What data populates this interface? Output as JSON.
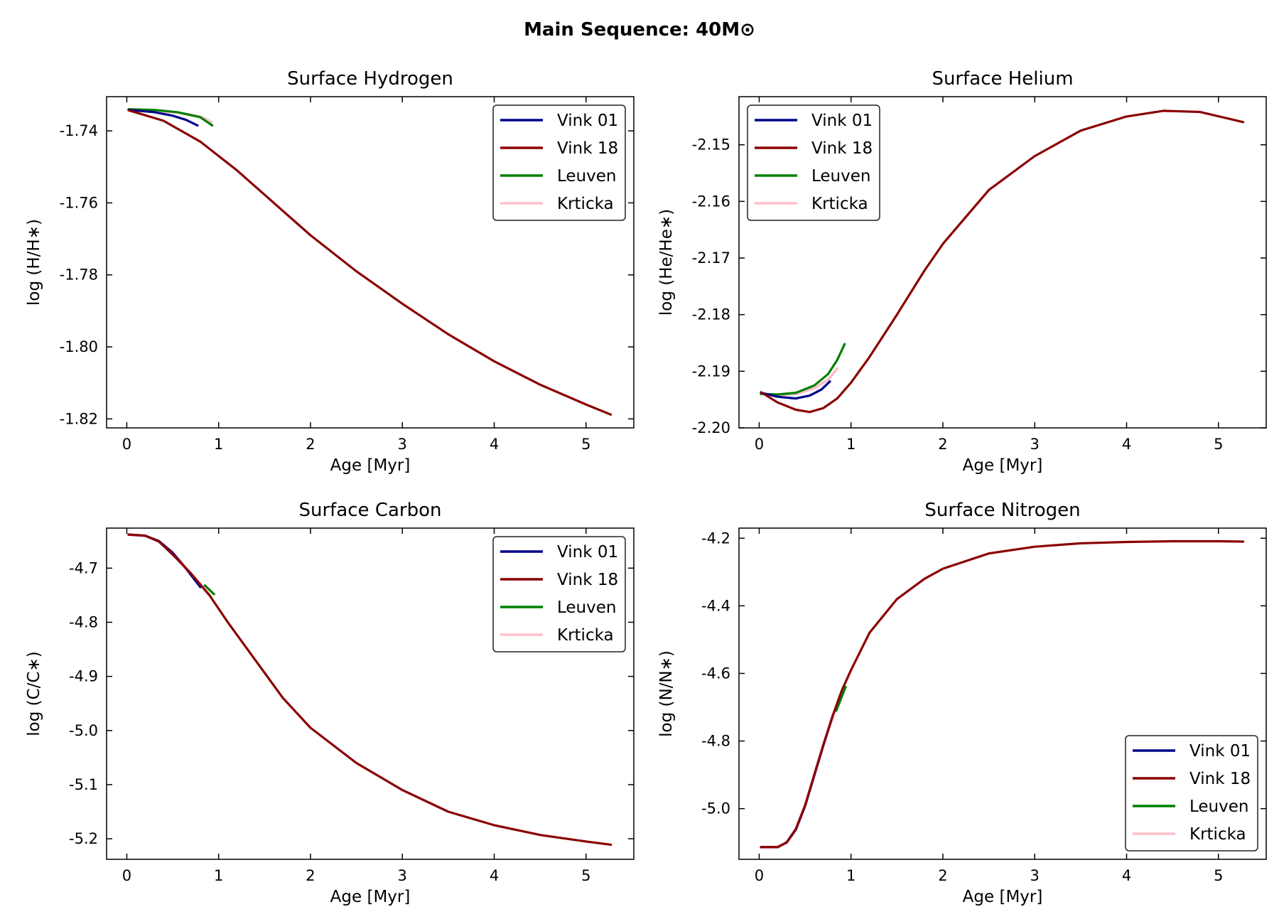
{
  "figure_title": "Main Sequence: 40M⊙",
  "colors": {
    "Vink 01": "#00008b",
    "Vink 18": "#8b0000",
    "Leuven": "#008000",
    "Krticka": "#ffc0cb"
  },
  "chart_data": [
    {
      "type": "line",
      "title": "Surface Hydrogen",
      "xlabel": "Age [Myr]",
      "ylabel": "log (H/H∗)",
      "xlim": [
        -0.22,
        5.52
      ],
      "ylim": [
        -1.8225,
        -1.7305
      ],
      "xticks": [
        0,
        1,
        2,
        3,
        4,
        5
      ],
      "yticks": [
        -1.82,
        -1.8,
        -1.78,
        -1.76,
        -1.74
      ],
      "ytick_labels": [
        "-1.82",
        "-1.80",
        "-1.78",
        "-1.76",
        "-1.74"
      ],
      "legend": "upper right",
      "series": [
        {
          "name": "Krticka",
          "x": [
            0.02,
            0.3,
            0.55,
            0.8,
            0.92
          ],
          "y": [
            -1.7342,
            -1.7344,
            -1.7349,
            -1.736,
            -1.7375
          ]
        },
        {
          "name": "Leuven",
          "x": [
            0.02,
            0.3,
            0.55,
            0.8,
            0.93
          ],
          "y": [
            -1.734,
            -1.7342,
            -1.7348,
            -1.7362,
            -1.7385
          ]
        },
        {
          "name": "Vink 01",
          "x": [
            0.02,
            0.3,
            0.5,
            0.65,
            0.77
          ],
          "y": [
            -1.7342,
            -1.7348,
            -1.7358,
            -1.737,
            -1.7385
          ]
        },
        {
          "name": "Vink 18",
          "x": [
            0.02,
            0.4,
            0.8,
            1.2,
            1.6,
            2.0,
            2.5,
            3.0,
            3.5,
            4.0,
            4.5,
            5.0,
            5.27
          ],
          "y": [
            -1.7343,
            -1.7372,
            -1.743,
            -1.751,
            -1.76,
            -1.769,
            -1.779,
            -1.788,
            -1.7965,
            -1.804,
            -1.8105,
            -1.816,
            -1.8188
          ]
        }
      ]
    },
    {
      "type": "line",
      "title": "Surface Helium",
      "xlabel": "Age [Myr]",
      "ylabel": "log (He/He∗)",
      "xlim": [
        -0.22,
        5.52
      ],
      "ylim": [
        -2.2,
        -2.1415
      ],
      "xticks": [
        0,
        1,
        2,
        3,
        4,
        5
      ],
      "yticks": [
        -2.2,
        -2.19,
        -2.18,
        -2.17,
        -2.16,
        -2.15
      ],
      "ytick_labels": [
        "-2.20",
        "-2.19",
        "-2.18",
        "-2.17",
        "-2.16",
        "-2.15"
      ],
      "legend": "upper left",
      "series": [
        {
          "name": "Krticka",
          "x": [
            0.02,
            0.2,
            0.4,
            0.6,
            0.75,
            0.85
          ],
          "y": [
            -2.194,
            -2.1942,
            -2.194,
            -2.193,
            -2.1915,
            -2.1895
          ]
        },
        {
          "name": "Leuven",
          "x": [
            0.02,
            0.2,
            0.4,
            0.6,
            0.75,
            0.85,
            0.93
          ],
          "y": [
            -2.194,
            -2.1941,
            -2.1938,
            -2.1925,
            -2.1905,
            -2.188,
            -2.1852
          ]
        },
        {
          "name": "Vink 01",
          "x": [
            0.02,
            0.2,
            0.4,
            0.55,
            0.68,
            0.77
          ],
          "y": [
            -2.1938,
            -2.1945,
            -2.1948,
            -2.1943,
            -2.1932,
            -2.1918
          ]
        },
        {
          "name": "Vink 18",
          "x": [
            0.02,
            0.2,
            0.4,
            0.55,
            0.7,
            0.85,
            1.0,
            1.2,
            1.5,
            1.8,
            2.0,
            2.5,
            3.0,
            3.5,
            4.0,
            4.4,
            4.8,
            5.27
          ],
          "y": [
            -2.1937,
            -2.1955,
            -2.1968,
            -2.1972,
            -2.1965,
            -2.1948,
            -2.192,
            -2.1875,
            -2.18,
            -2.1722,
            -2.1675,
            -2.158,
            -2.152,
            -2.1475,
            -2.145,
            -2.144,
            -2.1442,
            -2.146
          ]
        }
      ]
    },
    {
      "type": "line",
      "title": "Surface Carbon",
      "xlabel": "Age [Myr]",
      "ylabel": "log (C/C∗)",
      "xlim": [
        -0.22,
        5.52
      ],
      "ylim": [
        -5.238,
        -4.626
      ],
      "xticks": [
        0,
        1,
        2,
        3,
        4,
        5
      ],
      "yticks": [
        -5.2,
        -5.1,
        -5.0,
        -4.9,
        -4.8,
        -4.7
      ],
      "ytick_labels": [
        "-5.2",
        "-5.1",
        "-5.0",
        "-4.9",
        "-4.8",
        "-4.7"
      ],
      "legend": "upper right",
      "series": [
        {
          "name": "Krticka",
          "x": [
            0.02,
            0.2,
            0.35,
            0.5,
            0.65,
            0.8,
            0.9
          ],
          "y": [
            -4.638,
            -4.64,
            -4.65,
            -4.67,
            -4.7,
            -4.73,
            -4.75
          ]
        },
        {
          "name": "Leuven",
          "x": [
            0.85,
            0.95
          ],
          "y": [
            -4.732,
            -4.748
          ]
        },
        {
          "name": "Vink 01",
          "x": [
            0.02,
            0.2,
            0.35,
            0.5,
            0.65,
            0.8
          ],
          "y": [
            -4.638,
            -4.64,
            -4.65,
            -4.672,
            -4.702,
            -4.735
          ]
        },
        {
          "name": "Vink 18",
          "x": [
            0.02,
            0.2,
            0.35,
            0.5,
            0.7,
            0.9,
            1.1,
            1.4,
            1.7,
            2.0,
            2.5,
            3.0,
            3.5,
            4.0,
            4.5,
            5.0,
            5.27
          ],
          "y": [
            -4.638,
            -4.64,
            -4.651,
            -4.675,
            -4.71,
            -4.75,
            -4.8,
            -4.87,
            -4.94,
            -4.995,
            -5.06,
            -5.11,
            -5.15,
            -5.175,
            -5.193,
            -5.205,
            -5.211
          ]
        }
      ]
    },
    {
      "type": "line",
      "title": "Surface Nitrogen",
      "xlabel": "Age [Myr]",
      "ylabel": "log (N/N∗)",
      "xlim": [
        -0.22,
        5.52
      ],
      "ylim": [
        -5.15,
        -4.17
      ],
      "xticks": [
        0,
        1,
        2,
        3,
        4,
        5
      ],
      "yticks": [
        -5.0,
        -4.8,
        -4.6,
        -4.4,
        -4.2
      ],
      "ytick_labels": [
        "-5.0",
        "-4.8",
        "-4.6",
        "-4.4",
        "-4.2"
      ],
      "legend": "lower right",
      "series": [
        {
          "name": "Krticka",
          "x": [
            0.02,
            0.2,
            0.3,
            0.4,
            0.5,
            0.6,
            0.7,
            0.8,
            0.9
          ],
          "y": [
            -5.114,
            -5.114,
            -5.1,
            -5.06,
            -4.99,
            -4.9,
            -4.81,
            -4.73,
            -4.66
          ]
        },
        {
          "name": "Leuven",
          "x": [
            0.84,
            0.94
          ],
          "y": [
            -4.71,
            -4.64
          ]
        },
        {
          "name": "Vink 01",
          "x": [
            0.02,
            0.2,
            0.3,
            0.4,
            0.5,
            0.6,
            0.7,
            0.8
          ],
          "y": [
            -5.114,
            -5.114,
            -5.1,
            -5.062,
            -4.992,
            -4.902,
            -4.812,
            -4.725
          ]
        },
        {
          "name": "Vink 18",
          "x": [
            0.02,
            0.2,
            0.3,
            0.4,
            0.5,
            0.6,
            0.7,
            0.8,
            0.9,
            1.0,
            1.2,
            1.5,
            1.8,
            2.0,
            2.5,
            3.0,
            3.5,
            4.0,
            4.5,
            5.0,
            5.27
          ],
          "y": [
            -5.114,
            -5.114,
            -5.1,
            -5.06,
            -4.99,
            -4.9,
            -4.81,
            -4.725,
            -4.65,
            -4.59,
            -4.48,
            -4.38,
            -4.32,
            -4.29,
            -4.245,
            -4.225,
            -4.215,
            -4.211,
            -4.209,
            -4.209,
            -4.21
          ]
        }
      ]
    }
  ]
}
